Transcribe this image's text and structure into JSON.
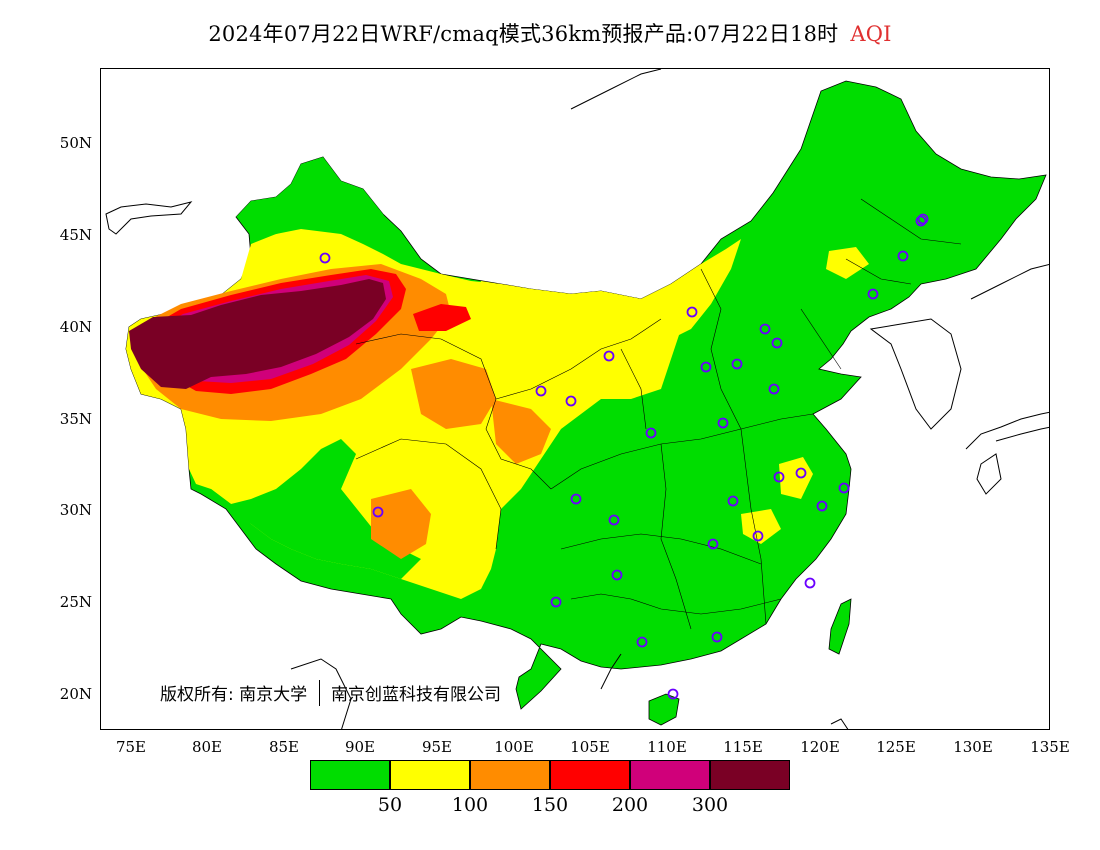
{
  "title": {
    "main": "2024年07月22日WRF/cmaq模式36km预报产品:07月22日18时",
    "variable": "AQI",
    "variable_color": "#e03030"
  },
  "axes": {
    "y_labels": [
      "50N",
      "45N",
      "40N",
      "35N",
      "30N",
      "25N",
      "20N"
    ],
    "x_labels": [
      "75E",
      "80E",
      "85E",
      "90E",
      "95E",
      "100E",
      "105E",
      "110E",
      "115E",
      "120E",
      "125E",
      "130E",
      "135E"
    ]
  },
  "copyright": {
    "prefix": "版权所有:",
    "org1": "南京大学",
    "org2": "南京创蓝科技有限公司"
  },
  "legend": {
    "colors": [
      "#00dd00",
      "#ffff00",
      "#ff8c00",
      "#ff0000",
      "#d0007a",
      "#7a0025"
    ],
    "ticks": [
      "50",
      "100",
      "150",
      "200",
      "300"
    ]
  },
  "stations": "purple circle markers at major cities"
}
